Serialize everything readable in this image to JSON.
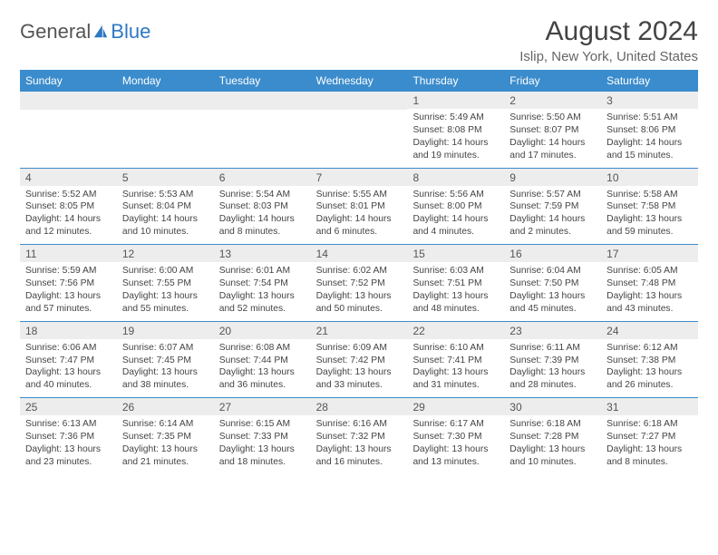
{
  "logo": {
    "general": "General",
    "blue": "Blue"
  },
  "title": "August 2024",
  "location": "Islip, New York, United States",
  "colors": {
    "header_bg": "#3b8ccc",
    "header_text": "#ffffff",
    "daynum_bg": "#ededed",
    "daynum_text": "#555555",
    "body_text": "#444444",
    "rule": "#3b8ccc",
    "logo_blue": "#2f78c2",
    "logo_gray": "#555555"
  },
  "dow": [
    "Sunday",
    "Monday",
    "Tuesday",
    "Wednesday",
    "Thursday",
    "Friday",
    "Saturday"
  ],
  "weeks": [
    [
      null,
      null,
      null,
      null,
      {
        "n": "1",
        "sr": "5:49 AM",
        "ss": "8:08 PM",
        "dl": "14 hours and 19 minutes."
      },
      {
        "n": "2",
        "sr": "5:50 AM",
        "ss": "8:07 PM",
        "dl": "14 hours and 17 minutes."
      },
      {
        "n": "3",
        "sr": "5:51 AM",
        "ss": "8:06 PM",
        "dl": "14 hours and 15 minutes."
      }
    ],
    [
      {
        "n": "4",
        "sr": "5:52 AM",
        "ss": "8:05 PM",
        "dl": "14 hours and 12 minutes."
      },
      {
        "n": "5",
        "sr": "5:53 AM",
        "ss": "8:04 PM",
        "dl": "14 hours and 10 minutes."
      },
      {
        "n": "6",
        "sr": "5:54 AM",
        "ss": "8:03 PM",
        "dl": "14 hours and 8 minutes."
      },
      {
        "n": "7",
        "sr": "5:55 AM",
        "ss": "8:01 PM",
        "dl": "14 hours and 6 minutes."
      },
      {
        "n": "8",
        "sr": "5:56 AM",
        "ss": "8:00 PM",
        "dl": "14 hours and 4 minutes."
      },
      {
        "n": "9",
        "sr": "5:57 AM",
        "ss": "7:59 PM",
        "dl": "14 hours and 2 minutes."
      },
      {
        "n": "10",
        "sr": "5:58 AM",
        "ss": "7:58 PM",
        "dl": "13 hours and 59 minutes."
      }
    ],
    [
      {
        "n": "11",
        "sr": "5:59 AM",
        "ss": "7:56 PM",
        "dl": "13 hours and 57 minutes."
      },
      {
        "n": "12",
        "sr": "6:00 AM",
        "ss": "7:55 PM",
        "dl": "13 hours and 55 minutes."
      },
      {
        "n": "13",
        "sr": "6:01 AM",
        "ss": "7:54 PM",
        "dl": "13 hours and 52 minutes."
      },
      {
        "n": "14",
        "sr": "6:02 AM",
        "ss": "7:52 PM",
        "dl": "13 hours and 50 minutes."
      },
      {
        "n": "15",
        "sr": "6:03 AM",
        "ss": "7:51 PM",
        "dl": "13 hours and 48 minutes."
      },
      {
        "n": "16",
        "sr": "6:04 AM",
        "ss": "7:50 PM",
        "dl": "13 hours and 45 minutes."
      },
      {
        "n": "17",
        "sr": "6:05 AM",
        "ss": "7:48 PM",
        "dl": "13 hours and 43 minutes."
      }
    ],
    [
      {
        "n": "18",
        "sr": "6:06 AM",
        "ss": "7:47 PM",
        "dl": "13 hours and 40 minutes."
      },
      {
        "n": "19",
        "sr": "6:07 AM",
        "ss": "7:45 PM",
        "dl": "13 hours and 38 minutes."
      },
      {
        "n": "20",
        "sr": "6:08 AM",
        "ss": "7:44 PM",
        "dl": "13 hours and 36 minutes."
      },
      {
        "n": "21",
        "sr": "6:09 AM",
        "ss": "7:42 PM",
        "dl": "13 hours and 33 minutes."
      },
      {
        "n": "22",
        "sr": "6:10 AM",
        "ss": "7:41 PM",
        "dl": "13 hours and 31 minutes."
      },
      {
        "n": "23",
        "sr": "6:11 AM",
        "ss": "7:39 PM",
        "dl": "13 hours and 28 minutes."
      },
      {
        "n": "24",
        "sr": "6:12 AM",
        "ss": "7:38 PM",
        "dl": "13 hours and 26 minutes."
      }
    ],
    [
      {
        "n": "25",
        "sr": "6:13 AM",
        "ss": "7:36 PM",
        "dl": "13 hours and 23 minutes."
      },
      {
        "n": "26",
        "sr": "6:14 AM",
        "ss": "7:35 PM",
        "dl": "13 hours and 21 minutes."
      },
      {
        "n": "27",
        "sr": "6:15 AM",
        "ss": "7:33 PM",
        "dl": "13 hours and 18 minutes."
      },
      {
        "n": "28",
        "sr": "6:16 AM",
        "ss": "7:32 PM",
        "dl": "13 hours and 16 minutes."
      },
      {
        "n": "29",
        "sr": "6:17 AM",
        "ss": "7:30 PM",
        "dl": "13 hours and 13 minutes."
      },
      {
        "n": "30",
        "sr": "6:18 AM",
        "ss": "7:28 PM",
        "dl": "13 hours and 10 minutes."
      },
      {
        "n": "31",
        "sr": "6:18 AM",
        "ss": "7:27 PM",
        "dl": "13 hours and 8 minutes."
      }
    ]
  ],
  "labels": {
    "sunrise": "Sunrise:",
    "sunset": "Sunset:",
    "daylight": "Daylight:"
  }
}
